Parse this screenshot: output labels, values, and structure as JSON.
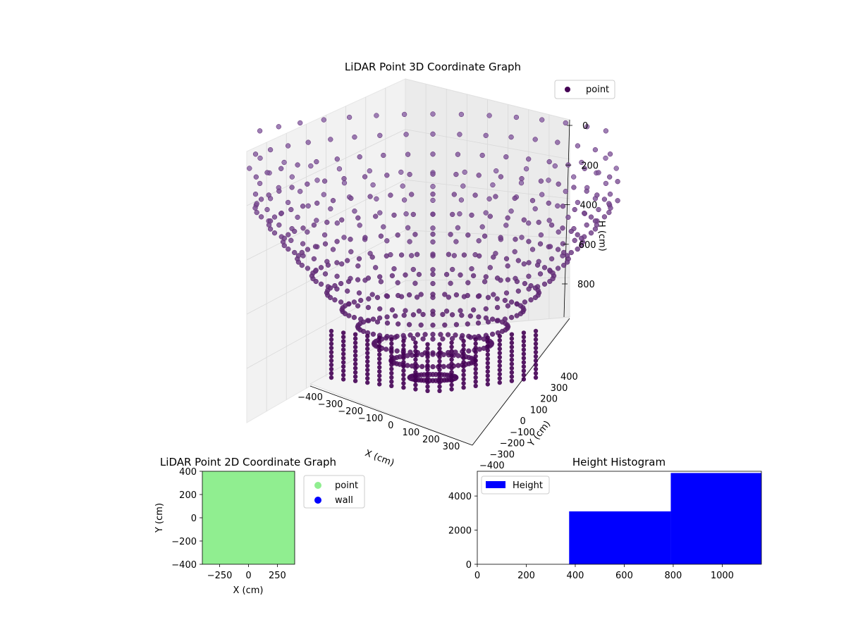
{
  "chart_data": [
    {
      "type": "scatter",
      "title": "LiDAR Point 3D Coordinate Graph",
      "xlabel": "X (cm)",
      "ylabel": "Y (cm)",
      "zlabel": "H (cm)",
      "x_ticks": [
        "−400",
        "−300",
        "−200",
        "−100",
        "0",
        "100",
        "200",
        "300"
      ],
      "y_ticks": [
        "−400",
        "−300",
        "−200",
        "−100",
        "0",
        "100",
        "200",
        "300",
        "400"
      ],
      "z_ticks": [
        "0",
        "200",
        "400",
        "600",
        "800"
      ],
      "xlim": [
        -400,
        400
      ],
      "ylim": [
        -400,
        400
      ],
      "zlim": [
        0,
        1000
      ],
      "z_inverted": true,
      "grid": true,
      "legend": {
        "position": "top-right",
        "entries": [
          {
            "name": "point",
            "color": "#440154"
          }
        ]
      },
      "series": [
        {
          "name": "point",
          "shape": "bowl",
          "color_low": "#440154",
          "color_high": "#8e6aa8",
          "rings": 16,
          "rays": 48
        }
      ]
    },
    {
      "type": "scatter",
      "title": "LiDAR Point 2D Coordinate Graph",
      "xlabel": "X (cm)",
      "ylabel": "Y (cm)",
      "x_ticks": [
        "−250",
        "0",
        "250"
      ],
      "y_ticks": [
        "−400",
        "−200",
        "0",
        "200",
        "400"
      ],
      "xlim": [
        -400,
        400
      ],
      "ylim": [
        -400,
        400
      ],
      "legend": {
        "position": "right-outside",
        "entries": [
          {
            "name": "point",
            "color": "#90ee90"
          },
          {
            "name": "wall",
            "color": "#0000ff"
          }
        ]
      },
      "fill_color": "#90ee90"
    },
    {
      "type": "bar",
      "title": "Height Histogram",
      "x_ticks": [
        "0",
        "200",
        "400",
        "600",
        "800",
        "1000"
      ],
      "y_ticks": [
        "0",
        "2000",
        "4000"
      ],
      "xlim": [
        0,
        1160
      ],
      "ylim": [
        0,
        5450
      ],
      "legend": {
        "position": "top-left",
        "entries": [
          {
            "name": "Height",
            "color": "#0000ff"
          }
        ]
      },
      "bins": [
        {
          "start": 0,
          "end": 375,
          "value": 0
        },
        {
          "start": 375,
          "end": 790,
          "value": 3100
        },
        {
          "start": 790,
          "end": 1160,
          "value": 5350
        }
      ],
      "color": "#0000ff"
    }
  ]
}
